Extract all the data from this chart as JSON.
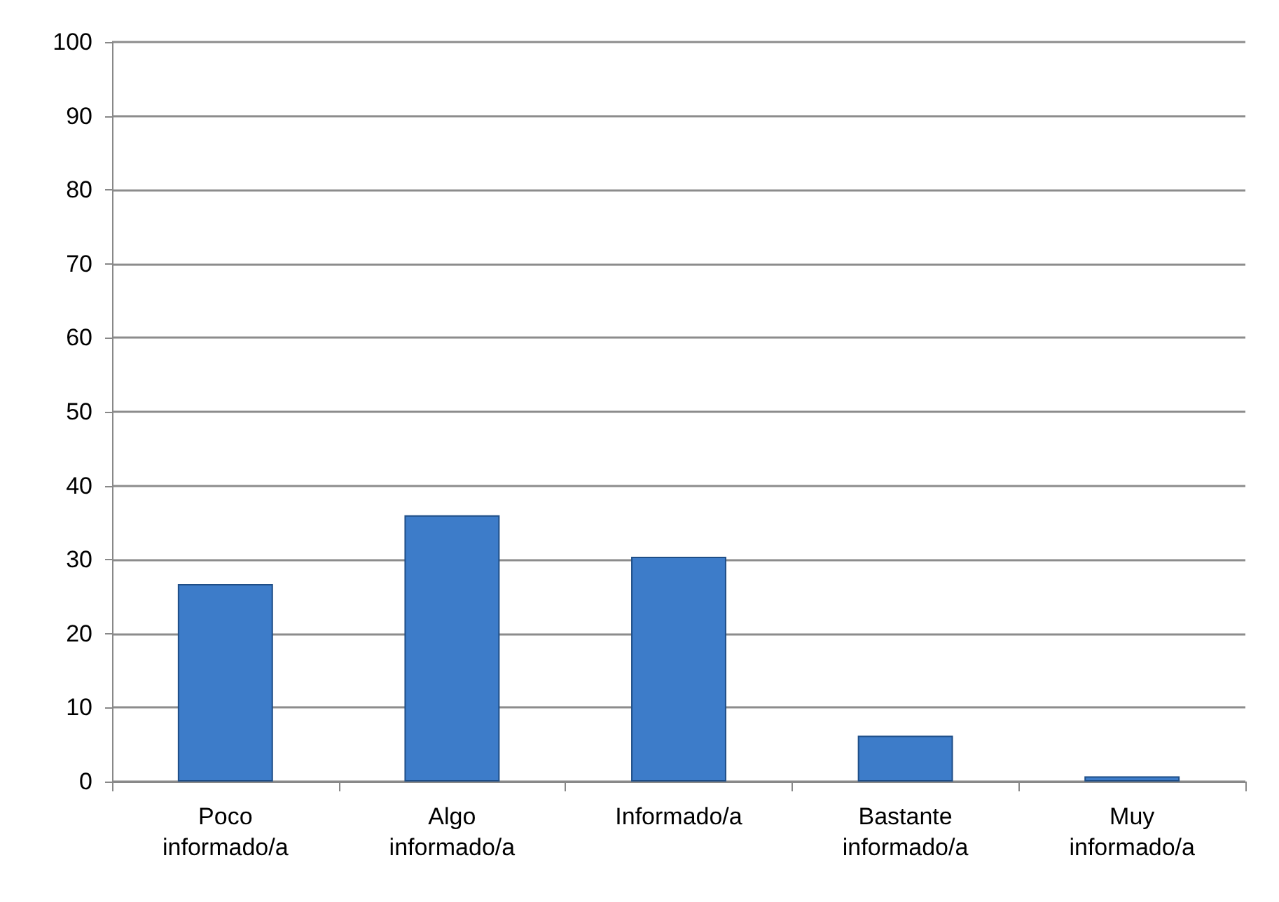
{
  "chart_data": {
    "type": "bar",
    "categories": [
      "Poco\ninformado/a",
      "Algo\ninformado/a",
      "Informado/a",
      "Bastante\ninformado/a",
      "Muy\ninformado/a"
    ],
    "values": [
      26.7,
      36.0,
      30.4,
      6.2,
      0.7
    ],
    "color": "#3d7cc9",
    "ylim": [
      0,
      100
    ],
    "yticks": [
      0,
      10,
      20,
      30,
      40,
      50,
      60,
      70,
      80,
      90,
      100
    ],
    "grid": "y"
  }
}
